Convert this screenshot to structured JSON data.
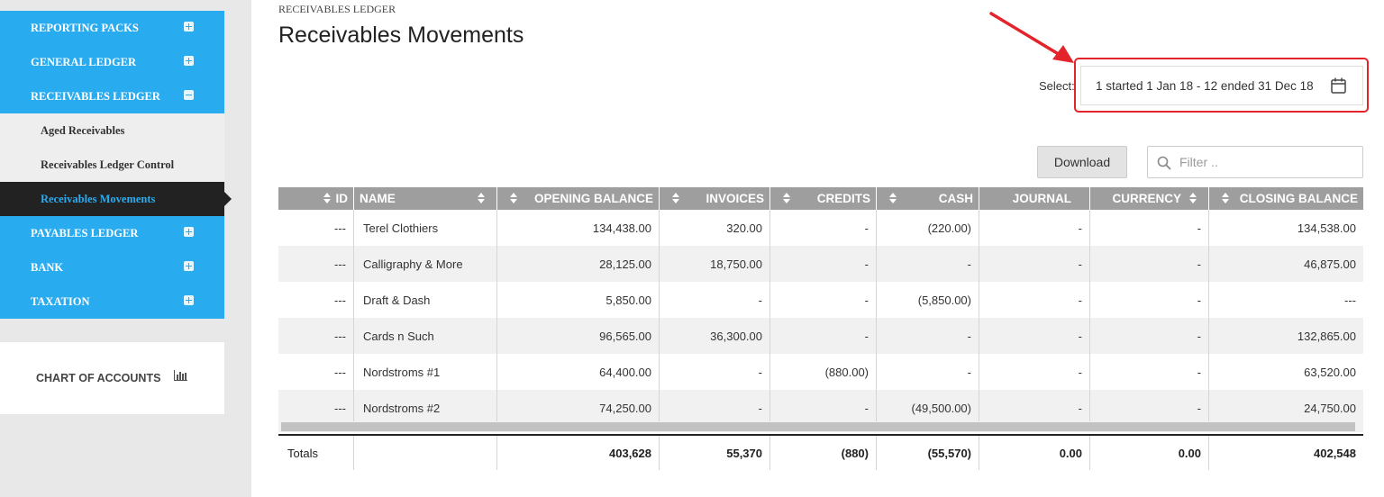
{
  "sidebar": {
    "top_items": [
      {
        "label": "REPORTING PACKS"
      },
      {
        "label": "GENERAL LEDGER"
      },
      {
        "label": "RECEIVABLES LEDGER"
      }
    ],
    "sub_items": [
      {
        "label": "Aged Receivables"
      },
      {
        "label": "Receivables Ledger Control"
      },
      {
        "label": "Receivables Movements"
      }
    ],
    "bottom_items": [
      {
        "label": "PAYABLES LEDGER"
      },
      {
        "label": "BANK"
      },
      {
        "label": "TAXATION"
      }
    ],
    "chart_of_accounts": "CHART OF ACCOUNTS"
  },
  "header": {
    "breadcrumb": "RECEIVABLES LEDGER",
    "title": "Receivables Movements"
  },
  "period": {
    "label": "Select:",
    "value": "1 started 1 Jan 18 - 12 ended 31 Dec 18"
  },
  "toolbar": {
    "download_label": "Download",
    "filter_placeholder": "Filter .."
  },
  "table": {
    "columns": [
      "ID",
      "NAME",
      "OPENING BALANCE",
      "INVOICES",
      "CREDITS",
      "CASH",
      "JOURNAL",
      "CURRENCY",
      "CLOSING BALANCE"
    ],
    "rows": [
      [
        "---",
        "Terel Clothiers",
        "134,438.00",
        "320.00",
        "-",
        "(220.00)",
        "-",
        "-",
        "134,538.00"
      ],
      [
        "---",
        "Calligraphy & More",
        "28,125.00",
        "18,750.00",
        "-",
        "-",
        "-",
        "-",
        "46,875.00"
      ],
      [
        "---",
        "Draft & Dash",
        "5,850.00",
        "-",
        "-",
        "(5,850.00)",
        "-",
        "-",
        "---"
      ],
      [
        "---",
        "Cards n Such",
        "96,565.00",
        "36,300.00",
        "-",
        "-",
        "-",
        "-",
        "132,865.00"
      ],
      [
        "---",
        "Nordstroms #1",
        "64,400.00",
        "-",
        "(880.00)",
        "-",
        "-",
        "-",
        "63,520.00"
      ],
      [
        "---",
        "Nordstroms #2",
        "74,250.00",
        "-",
        "-",
        "(49,500.00)",
        "-",
        "-",
        "24,750.00"
      ]
    ],
    "totals": [
      "Totals",
      "",
      "403,628",
      "55,370",
      "(880)",
      "(55,570)",
      "0.00",
      "0.00",
      "402,548"
    ]
  },
  "colors": {
    "sidebar_accent": "#29abf0",
    "active_item_bg": "#222222",
    "table_header_bg": "#9e9e9e",
    "annotation_red": "#e3242b"
  }
}
